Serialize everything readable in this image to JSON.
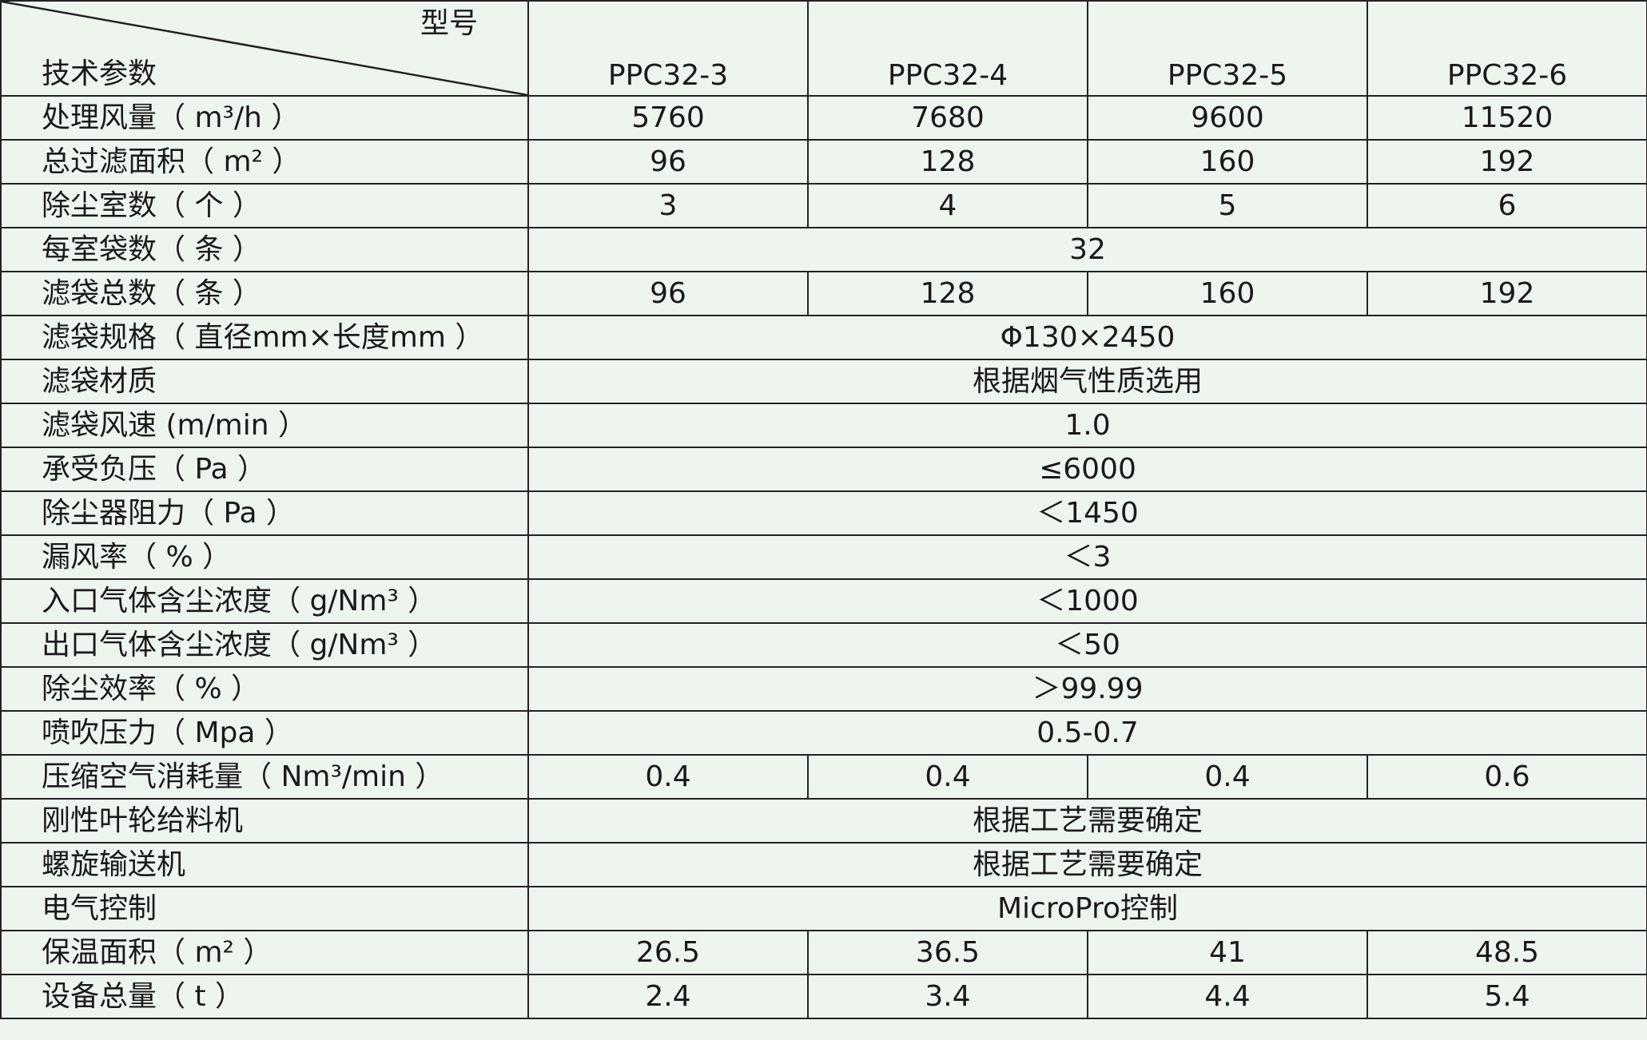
{
  "header": {
    "corner_top": "型号",
    "corner_bottom": "技术参数",
    "models": [
      "PPC32-3",
      "PPC32-4",
      "PPC32-5",
      "PPC32-6"
    ]
  },
  "rows": [
    {
      "label": "处理风量（ m³/h ）",
      "values": [
        "5760",
        "7680",
        "9600",
        "11520"
      ]
    },
    {
      "label": "总过滤面积（ m² ）",
      "values": [
        "96",
        "128",
        "160",
        "192"
      ]
    },
    {
      "label": "除尘室数（ 个 ）",
      "values": [
        "3",
        "4",
        "5",
        "6"
      ]
    },
    {
      "label": "每室袋数（ 条 ）",
      "merged": "32"
    },
    {
      "label": "滤袋总数（ 条 ）",
      "values": [
        "96",
        "128",
        "160",
        "192"
      ]
    },
    {
      "label": "滤袋规格（ 直径mm×长度mm ）",
      "merged": "Φ130×2450"
    },
    {
      "label": "滤袋材质",
      "merged": "根据烟气性质选用"
    },
    {
      "label": "滤袋风速 (m/min ）",
      "merged": "1.0"
    },
    {
      "label": "承受负压（ Pa ）",
      "merged": "≤6000"
    },
    {
      "label": "除尘器阻力（ Pa ）",
      "merged": "＜1450"
    },
    {
      "label": "漏风率（ % ）",
      "merged": "＜3"
    },
    {
      "label": "入口气体含尘浓度（ g/Nm³ ）",
      "merged": "＜1000"
    },
    {
      "label": "出口气体含尘浓度（ g/Nm³ ）",
      "merged": "＜50"
    },
    {
      "label": "除尘效率（ % ）",
      "merged": "＞99.99"
    },
    {
      "label": "喷吹压力（ Mpa ）",
      "merged": "0.5-0.7"
    },
    {
      "label": "压缩空气消耗量（ Nm³/min ）",
      "values": [
        "0.4",
        "0.4",
        "0.4",
        "0.6"
      ]
    },
    {
      "label": "刚性叶轮给料机",
      "merged": "根据工艺需要确定"
    },
    {
      "label": "螺旋输送机",
      "merged": "根据工艺需要确定"
    },
    {
      "label": "电气控制",
      "merged": "MicroPro控制"
    },
    {
      "label": "保温面积（ m² ）",
      "values": [
        "26.5",
        "36.5",
        "41",
        "48.5"
      ]
    },
    {
      "label": "设备总量（ t ）",
      "values": [
        "2.4",
        "3.4",
        "4.4",
        "5.4"
      ]
    }
  ]
}
